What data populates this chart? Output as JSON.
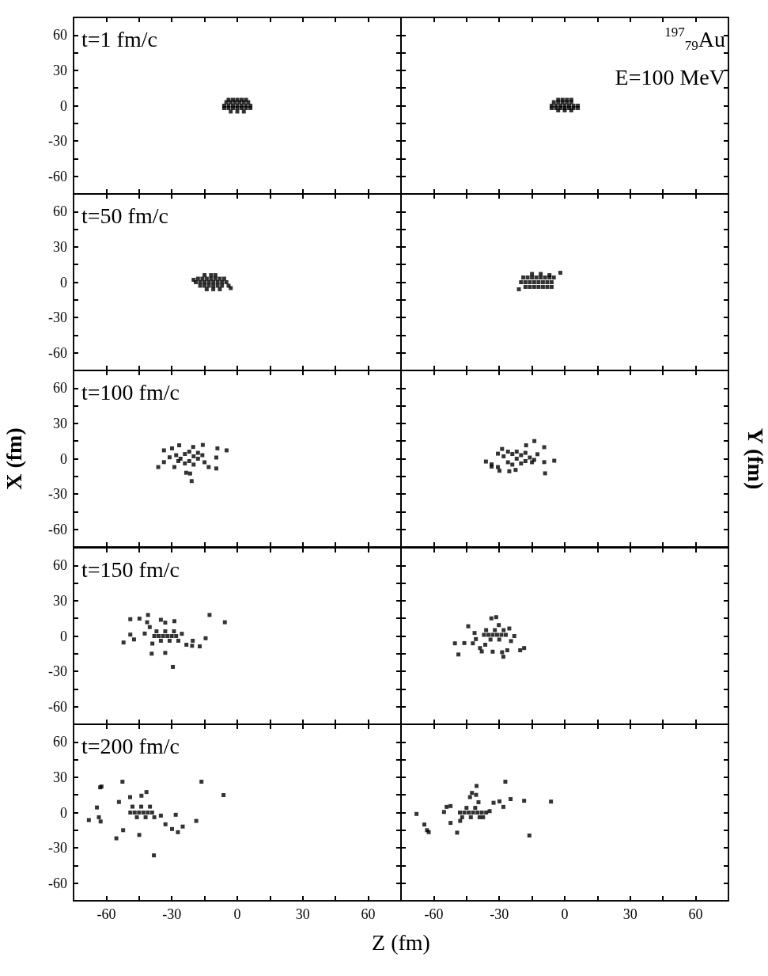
{
  "chart_data": [
    {
      "type": "scatter",
      "annotations": [
        "t=1 fm/c"
      ],
      "marker": "square",
      "color": "#000000",
      "tick_labels": "y",
      "xlim": [
        -75,
        75
      ],
      "ylim": [
        -75,
        75
      ],
      "xticks": [
        -60,
        {
          "value": -45,
          "label": null
        },
        -30,
        {
          "value": -15,
          "label": null
        },
        0,
        {
          "value": 15,
          "label": null
        },
        30,
        {
          "value": 45,
          "label": null
        },
        60
      ],
      "yticks": [
        -60,
        {
          "value": -45,
          "label": null
        },
        -30,
        {
          "value": -15,
          "label": null
        },
        0,
        {
          "value": 15,
          "label": null
        },
        30,
        {
          "value": 45,
          "label": null
        },
        60
      ],
      "x": [
        -6,
        -4,
        -2,
        0,
        2,
        4,
        6,
        -5,
        -3,
        -1,
        1,
        3,
        5,
        -6,
        -4,
        -2,
        0,
        2,
        4,
        6,
        -4,
        -2,
        0,
        2,
        4,
        -3,
        0,
        3
      ],
      "values": [
        0,
        0,
        0,
        0,
        0,
        0,
        0,
        3,
        3,
        3,
        3,
        3,
        3,
        -2,
        -2,
        -2,
        -2,
        -2,
        -2,
        -2,
        5,
        5,
        5,
        5,
        5,
        -5,
        -5,
        -5
      ]
    },
    {
      "type": "scatter",
      "annotations": [
        "$^{197}$$_{79}$Au",
        "E=100 MeV"
      ],
      "marker": "square",
      "color": "#000000",
      "tick_labels": false,
      "xlim": [
        -75,
        75
      ],
      "ylim": [
        -75,
        75
      ],
      "xticks": [
        -60,
        {
          "value": -45,
          "label": null
        },
        -30,
        {
          "value": -15,
          "label": null
        },
        0,
        {
          "value": 15,
          "label": null
        },
        30,
        {
          "value": 45,
          "label": null
        },
        60
      ],
      "yticks": [
        -60,
        {
          "value": -45,
          "label": null
        },
        -30,
        {
          "value": -15,
          "label": null
        },
        0,
        {
          "value": 15,
          "label": null
        },
        30,
        {
          "value": 45,
          "label": null
        },
        60
      ],
      "x": [
        -6,
        -4,
        -2,
        0,
        2,
        4,
        6,
        -5,
        -3,
        -1,
        1,
        3,
        -6,
        -4,
        -2,
        0,
        2,
        4,
        6,
        -3,
        -1,
        1,
        3,
        -3,
        0,
        3
      ],
      "values": [
        0,
        0,
        0,
        0,
        0,
        0,
        0,
        3,
        3,
        3,
        3,
        3,
        -2,
        -2,
        -2,
        -2,
        -2,
        -2,
        -2,
        5,
        5,
        5,
        5,
        -4,
        -4,
        -4
      ]
    },
    {
      "type": "scatter",
      "annotations": [
        "t=50 fm/c"
      ],
      "marker": "square",
      "color": "#000000",
      "tick_labels": "y",
      "xlim": [
        -75,
        75
      ],
      "ylim": [
        -75,
        75
      ],
      "xticks": [
        -60,
        {
          "value": -45,
          "label": null
        },
        -30,
        {
          "value": -15,
          "label": null
        },
        0,
        {
          "value": 15,
          "label": null
        },
        30,
        {
          "value": 45,
          "label": null
        },
        60
      ],
      "yticks": [
        -60,
        {
          "value": -45,
          "label": null
        },
        -30,
        {
          "value": -15,
          "label": null
        },
        0,
        {
          "value": 15,
          "label": null
        },
        30,
        {
          "value": 45,
          "label": null
        },
        60
      ],
      "x": [
        -19,
        -17,
        -15,
        -13,
        -11,
        -9,
        -7,
        -5,
        -18,
        -16,
        -14,
        -12,
        -10,
        -8,
        -6,
        -17,
        -15,
        -13,
        -11,
        -9,
        -7,
        -4,
        -15,
        -12,
        -10,
        -14,
        -11,
        -8,
        -3,
        -20
      ],
      "values": [
        0,
        0,
        0,
        0,
        0,
        0,
        0,
        0,
        3,
        3,
        3,
        3,
        3,
        3,
        3,
        -3,
        -3,
        -3,
        -3,
        -3,
        -3,
        -3,
        6,
        6,
        6,
        -6,
        -6,
        -6,
        -5,
        2
      ]
    },
    {
      "type": "scatter",
      "marker": "square",
      "color": "#000000",
      "tick_labels": false,
      "xlim": [
        -75,
        75
      ],
      "ylim": [
        -75,
        75
      ],
      "xticks": [
        -60,
        {
          "value": -45,
          "label": null
        },
        -30,
        {
          "value": -15,
          "label": null
        },
        0,
        {
          "value": 15,
          "label": null
        },
        30,
        {
          "value": 45,
          "label": null
        },
        60
      ],
      "yticks": [
        -60,
        {
          "value": -45,
          "label": null
        },
        -30,
        {
          "value": -15,
          "label": null
        },
        0,
        {
          "value": 15,
          "label": null
        },
        30,
        {
          "value": 45,
          "label": null
        },
        60
      ],
      "x": [
        -20,
        -18,
        -16,
        -14,
        -12,
        -10,
        -8,
        -6,
        -19,
        -17,
        -15,
        -13,
        -11,
        -9,
        -7,
        -5,
        -18,
        -16,
        -14,
        -12,
        -10,
        -8,
        -6,
        -15,
        -11,
        -7,
        -21,
        -2
      ],
      "values": [
        0,
        0,
        0,
        0,
        0,
        0,
        0,
        0,
        4,
        4,
        4,
        4,
        4,
        4,
        4,
        4,
        -4,
        -4,
        -4,
        -4,
        -4,
        -4,
        -4,
        7,
        7,
        6,
        -6,
        8
      ]
    },
    {
      "type": "scatter",
      "annotations": [
        "t=100 fm/c"
      ],
      "ylabel": "X (fm)",
      "marker": "square",
      "color": "#000000",
      "tick_labels": "y",
      "xlim": [
        -75,
        75
      ],
      "ylim": [
        -75,
        75
      ],
      "xticks": [
        -60,
        {
          "value": -45,
          "label": null
        },
        -30,
        {
          "value": -15,
          "label": null
        },
        0,
        {
          "value": 15,
          "label": null
        },
        30,
        {
          "value": 45,
          "label": null
        },
        60
      ],
      "yticks": [
        -60,
        {
          "value": -45,
          "label": null
        },
        -30,
        {
          "value": -15,
          "label": null
        },
        0,
        {
          "value": 15,
          "label": null
        },
        30,
        {
          "value": 45,
          "label": null
        },
        60
      ],
      "x": [
        -36.2,
        -33.6,
        -33.6,
        -29.9,
        -26.6,
        -20.2,
        -15.8,
        -9.1,
        -4.9,
        -9.6,
        -9.6,
        -13.1,
        -20.9,
        -21.6,
        -23.4,
        -28.8,
        -31,
        -28,
        -26,
        -24,
        -22,
        -20,
        -18,
        -16,
        -24,
        -20,
        -27,
        -15,
        -22,
        -18
      ],
      "values": [
        -7.1,
        7.1,
        -2.9,
        8.8,
        11.4,
        10,
        11.7,
        8.8,
        7.1,
        1,
        -8.3,
        -7.1,
        -19,
        -12.6,
        -11.9,
        -7.1,
        1.2,
        3,
        0,
        4,
        -2,
        2,
        0,
        3,
        -4,
        -5,
        -2,
        -3,
        6,
        5
      ]
    },
    {
      "type": "scatter",
      "ylabel": "Y (fm)",
      "marker": "square",
      "color": "#000000",
      "tick_labels": false,
      "xlim": [
        -75,
        75
      ],
      "ylim": [
        -75,
        75
      ],
      "xticks": [
        -60,
        {
          "value": -45,
          "label": null
        },
        -30,
        {
          "value": -15,
          "label": null
        },
        0,
        {
          "value": 15,
          "label": null
        },
        30,
        {
          "value": 45,
          "label": null
        },
        60
      ],
      "yticks": [
        -60,
        {
          "value": -45,
          "label": null
        },
        -30,
        {
          "value": -15,
          "label": null
        },
        0,
        {
          "value": 15,
          "label": null
        },
        30,
        {
          "value": 45,
          "label": null
        },
        60
      ],
      "x": [
        -36.1,
        -33.5,
        -33.5,
        -30.6,
        -29.9,
        -30.6,
        -28.7,
        -17.7,
        -13.9,
        -9.4,
        -12.5,
        -9.4,
        -4.8,
        -9,
        -25.4,
        -22.5,
        -28,
        -26,
        -24,
        -22,
        -20,
        -18,
        -16,
        -14,
        -26,
        -22,
        -18,
        -24,
        -20,
        -15
      ],
      "values": [
        -2.4,
        -4.8,
        -6.7,
        -7.1,
        -10.2,
        4.3,
        8.3,
        11.4,
        15,
        9.8,
        3.8,
        -2.9,
        -1.7,
        -12.4,
        -10.7,
        -9.5,
        2,
        -3,
        4,
        0,
        3,
        -2,
        1,
        -1,
        6,
        6,
        5,
        -5,
        -4,
        -3
      ]
    },
    {
      "type": "scatter",
      "annotations": [
        "t=150 fm/c"
      ],
      "marker": "square",
      "color": "#000000",
      "tick_labels": "y",
      "xlim": [
        -75,
        75
      ],
      "ylim": [
        -75,
        75
      ],
      "xticks": [
        -60,
        {
          "value": -45,
          "label": null
        },
        -30,
        {
          "value": -15,
          "label": null
        },
        0,
        {
          "value": 15,
          "label": null
        },
        30,
        {
          "value": 45,
          "label": null
        },
        60
      ],
      "yticks": [
        -60,
        {
          "value": -45,
          "label": null
        },
        -30,
        {
          "value": -15,
          "label": null
        },
        0,
        {
          "value": 15,
          "label": null
        },
        30,
        {
          "value": 45,
          "label": null
        },
        60
      ],
      "x": [
        -52.1,
        -49,
        -49,
        -47.3,
        -44.8,
        -40.9,
        -41.3,
        -42.4,
        -40.1,
        -35,
        -33,
        -28.8,
        -12.7,
        -5.7,
        -14.5,
        -17.2,
        -20.7,
        -20.4,
        -23.3,
        -25.4,
        -29.5,
        -33,
        -39.2,
        -38.9,
        -38,
        -36,
        -34,
        -32,
        -30,
        -28,
        -37,
        -33,
        -29,
        -35,
        -31,
        -27
      ],
      "values": [
        -5.5,
        14.3,
        1.2,
        -2.9,
        14.8,
        17.9,
        11.7,
        2.1,
        7.6,
        13.8,
        11.4,
        12.6,
        17.9,
        11.7,
        -1.9,
        -8.8,
        -8.3,
        -4,
        -7.4,
        1.9,
        -26.2,
        -14.3,
        -15,
        -6.4,
        0,
        0,
        0,
        0,
        0,
        0,
        4,
        4,
        4,
        -4,
        -4,
        -4
      ]
    },
    {
      "type": "scatter",
      "marker": "square",
      "color": "#000000",
      "tick_labels": false,
      "xlim": [
        -75,
        75
      ],
      "ylim": [
        -75,
        75
      ],
      "xticks": [
        -60,
        {
          "value": -45,
          "label": null
        },
        -30,
        {
          "value": -15,
          "label": null
        },
        0,
        {
          "value": 15,
          "label": null
        },
        30,
        {
          "value": 45,
          "label": null
        },
        60
      ],
      "yticks": [
        -60,
        {
          "value": -45,
          "label": null
        },
        -30,
        {
          "value": -15,
          "label": null
        },
        0,
        {
          "value": 15,
          "label": null
        },
        30,
        {
          "value": 45,
          "label": null
        },
        60
      ],
      "x": [
        -50.3,
        -48.7,
        -46,
        -44.2,
        -42.1,
        -41.3,
        -40.7,
        -38.8,
        -38,
        -33.6,
        -31.4,
        -30.2,
        -33,
        -28.7,
        -28.1,
        -26.3,
        -25.4,
        -23.1,
        -24.6,
        -20.4,
        -18.6,
        -36.4,
        -37,
        -35,
        -33,
        -31,
        -29,
        -27,
        -36,
        -32,
        -28,
        -34,
        -30
      ],
      "values": [
        -6.2,
        -15.7,
        -6,
        8.3,
        -6.2,
        2.6,
        -2.6,
        -10.2,
        -13.1,
        15,
        16,
        9.3,
        -13.3,
        -13.8,
        -17.6,
        -12.1,
        6.4,
        0,
        -4.3,
        -12.1,
        -10.2,
        -7.4,
        1,
        1,
        1,
        1,
        1,
        1,
        5,
        5,
        5,
        -3,
        -3
      ]
    },
    {
      "type": "scatter",
      "annotations": [
        "t=200 fm/c"
      ],
      "xlabel": "Z (fm)",
      "marker": "square",
      "color": "#000000",
      "xlim": [
        -75,
        75
      ],
      "ylim": [
        -75,
        75
      ],
      "xticks": [
        -60,
        {
          "value": -45,
          "label": null
        },
        -30,
        {
          "value": -15,
          "label": null
        },
        0,
        {
          "value": 15,
          "label": null
        },
        30,
        {
          "value": 45,
          "label": null
        },
        60
      ],
      "yticks": [
        -60,
        {
          "value": -45,
          "label": null
        },
        -30,
        {
          "value": -15,
          "label": null
        },
        0,
        {
          "value": 15,
          "label": null
        },
        30,
        {
          "value": 45,
          "label": null
        },
        60
      ],
      "x": [
        -68,
        -64.3,
        -63.4,
        -62.6,
        -62.8,
        -62.2,
        -52.6,
        -54.2,
        -55.4,
        -52.3,
        -49.1,
        -44.9,
        -41.6,
        -43.9,
        -38.2,
        -35,
        -32.9,
        -29.9,
        -27.2,
        -25,
        -28.2,
        -18.8,
        -16.4,
        -6.3,
        -49,
        -47,
        -45,
        -43,
        -41,
        -39,
        -48,
        -44,
        -40,
        -46,
        -42,
        -38
      ],
      "values": [
        -6.4,
        4.3,
        -4,
        -7.6,
        21.4,
        22.1,
        26.2,
        9,
        -21.9,
        -15,
        13.1,
        -19,
        17.4,
        14.3,
        -36.4,
        -2.6,
        -10,
        -14,
        -16.7,
        -11.9,
        -1.9,
        -7.1,
        26.2,
        14.8,
        0,
        0,
        0,
        0,
        0,
        0,
        5,
        5,
        5,
        -4,
        -4,
        -4
      ]
    },
    {
      "type": "scatter",
      "marker": "square",
      "color": "#000000",
      "tick_labels": "x",
      "xlim": [
        -75,
        75
      ],
      "ylim": [
        -75,
        75
      ],
      "xticks": [
        -60,
        {
          "value": -45,
          "label": null
        },
        -30,
        {
          "value": -15,
          "label": null
        },
        0,
        {
          "value": 15,
          "label": null
        },
        30,
        {
          "value": 45,
          "label": null
        },
        60
      ],
      "yticks": [
        -60,
        {
          "value": -45,
          "label": null
        },
        -30,
        {
          "value": -15,
          "label": null
        },
        0,
        {
          "value": 15,
          "label": null
        },
        30,
        {
          "value": 45,
          "label": null
        },
        60
      ],
      "x": [
        -67.9,
        -64.3,
        -63.1,
        -62.3,
        -55.3,
        -54.1,
        -52.3,
        -52.3,
        -49.3,
        -47.9,
        -43.4,
        -42.5,
        -40.4,
        -40.6,
        -39.5,
        -32.6,
        -29.9,
        -28.1,
        -27.2,
        -24.8,
        -18.6,
        -6.3,
        -16.2,
        -34.4,
        -37.4,
        -48,
        -46,
        -44,
        -42,
        -40,
        -38,
        -36,
        -45,
        -41,
        -47,
        -43,
        -39
      ],
      "values": [
        -1.2,
        -10.2,
        -15,
        -16.7,
        0.5,
        4.8,
        5.5,
        -8.8,
        -17.1,
        -7.1,
        13.1,
        16.7,
        22.6,
        15,
        8.8,
        8.3,
        9.5,
        4.8,
        26.2,
        11.4,
        10,
        9.3,
        -19.5,
        1.2,
        -4,
        0,
        0,
        0,
        0,
        0,
        0,
        0,
        4,
        4,
        -4,
        -4,
        -4
      ]
    }
  ]
}
